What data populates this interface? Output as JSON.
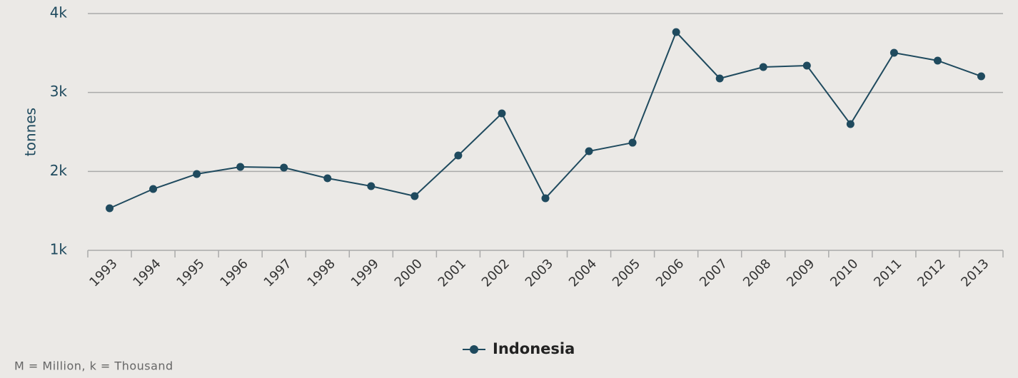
{
  "chart_data": {
    "type": "line",
    "y_label": "tonnes",
    "categories": [
      "1993",
      "1994",
      "1995",
      "1996",
      "1997",
      "1998",
      "1999",
      "2000",
      "2001",
      "2002",
      "2003",
      "2004",
      "2005",
      "2006",
      "2007",
      "2008",
      "2009",
      "2010",
      "2011",
      "2012",
      "2013"
    ],
    "series": [
      {
        "name": "Indonesia",
        "color": "#1f4a5e",
        "values": [
          1533,
          1777,
          1967,
          2057,
          2048,
          1913,
          1813,
          1687,
          2202,
          2735,
          1660,
          2256,
          2364,
          3765,
          3178,
          3322,
          3340,
          2599,
          3503,
          3404,
          3205
        ]
      }
    ],
    "ylim": [
      1000,
      4000
    ],
    "yticks": [
      {
        "value": 1000,
        "label": "1k"
      },
      {
        "value": 2000,
        "label": "2k"
      },
      {
        "value": 3000,
        "label": "3k"
      },
      {
        "value": 4000,
        "label": "4k"
      }
    ],
    "grid": true,
    "legend": "bottom",
    "footnote": "M = Million, k = Thousand"
  }
}
